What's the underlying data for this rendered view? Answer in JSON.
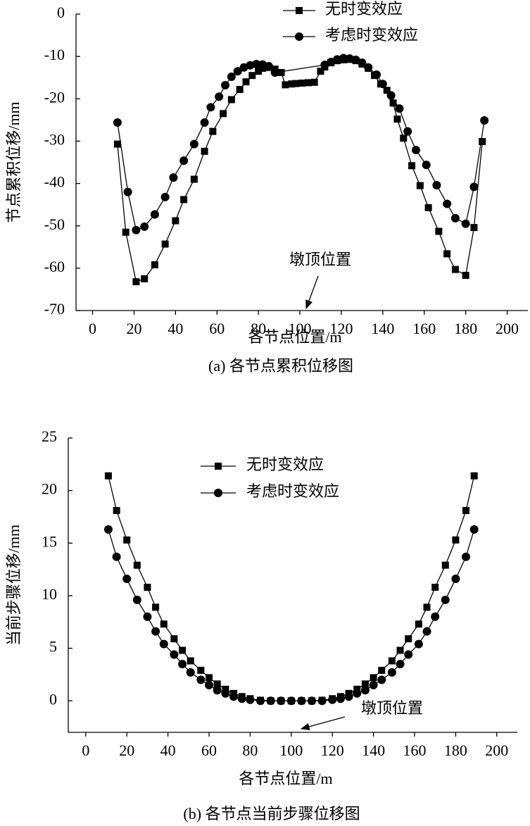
{
  "chart_data": [
    {
      "type": "line",
      "caption": "(a) 各节点累积位移图",
      "xlabel": "各节点位置/m",
      "ylabel": "节点累积位移/mm",
      "annotation": "墩顶位置",
      "xlim": [
        -8,
        210
      ],
      "xticks": [
        0,
        20,
        40,
        60,
        80,
        100,
        120,
        140,
        160,
        180,
        200
      ],
      "ylim": [
        -70,
        0
      ],
      "yticks": [
        -70,
        -60,
        -50,
        -40,
        -30,
        -20,
        -10,
        0
      ],
      "series": [
        {
          "name": "无时变效应",
          "color": "#000000",
          "marker": "square",
          "x": [
            12,
            16,
            21,
            25,
            30,
            35,
            40,
            44,
            49,
            54,
            58,
            63,
            67,
            71,
            74,
            77,
            80,
            82,
            85,
            88,
            91,
            93,
            96,
            98,
            101,
            104,
            107,
            110,
            112,
            115,
            118,
            121,
            124,
            127,
            130,
            133,
            136,
            139,
            142,
            145,
            147,
            150,
            154,
            158,
            162,
            167,
            171,
            175,
            180,
            184,
            188
          ],
          "values": [
            -30.7,
            -51.5,
            -63.2,
            -62.5,
            -59.2,
            -54.3,
            -48.8,
            -43.8,
            -39,
            -32.4,
            -27.7,
            -23.5,
            -20.2,
            -17.8,
            -16,
            -14.5,
            -13.5,
            -12.8,
            -12.6,
            -13,
            -13.8,
            -16.7,
            -16.5,
            -16.4,
            -16.3,
            -16.2,
            -16.1,
            -13.5,
            -12.5,
            -11.5,
            -11,
            -10.8,
            -10.7,
            -11,
            -11.8,
            -12.8,
            -14.5,
            -16.5,
            -18,
            -21,
            -24.8,
            -29.3,
            -35.8,
            -40.5,
            -45.7,
            -51.3,
            -56.6,
            -60.3,
            -61.7,
            -50.4,
            -30.1
          ]
        },
        {
          "name": "考虑时变效应",
          "color": "#000000",
          "marker": "circle",
          "x": [
            12,
            17,
            21,
            25,
            30,
            35,
            39,
            44,
            49,
            54,
            57,
            61,
            64,
            67,
            70,
            73,
            76,
            79,
            82,
            85,
            88,
            112,
            115,
            118,
            121,
            124,
            127,
            130,
            133,
            137,
            140,
            144,
            148,
            152,
            156,
            161,
            166,
            171,
            175,
            180,
            184,
            189
          ],
          "values": [
            -25.6,
            -42,
            -51,
            -50.2,
            -47.3,
            -43.2,
            -38.6,
            -34.6,
            -30.7,
            -25.6,
            -22,
            -19.5,
            -16.8,
            -14.8,
            -13.5,
            -12.6,
            -12.1,
            -11.8,
            -11.9,
            -12.3,
            -13.8,
            -12,
            -11.3,
            -10.7,
            -10.4,
            -10.5,
            -10.8,
            -11.5,
            -12.6,
            -14.3,
            -16.5,
            -19.2,
            -22.3,
            -27.7,
            -32.1,
            -35.6,
            -40.4,
            -44.8,
            -48.2,
            -49.5,
            -40.8,
            -25.1
          ]
        }
      ]
    },
    {
      "type": "line",
      "caption": "(b) 各节点当前步骤位移图",
      "xlabel": "各节点位置/m",
      "ylabel": "当前步骤位移/mm",
      "annotation": "墩顶位置",
      "xlim": [
        -8.5,
        210
      ],
      "xticks": [
        0,
        20,
        40,
        60,
        80,
        100,
        120,
        140,
        160,
        180,
        200
      ],
      "ylim": [
        -3,
        25
      ],
      "yticks": [
        0,
        5,
        10,
        15,
        20,
        25
      ],
      "series": [
        {
          "name": "无时变效应",
          "color": "#000000",
          "marker": "square",
          "x": [
            11,
            15,
            20,
            25,
            30,
            34,
            38,
            43,
            47,
            51,
            56,
            60,
            64,
            68,
            72,
            76,
            80,
            85,
            90,
            95,
            100,
            105,
            110,
            115,
            120,
            124,
            128,
            132,
            136,
            140,
            144,
            149,
            153,
            157,
            162,
            166,
            170,
            175,
            180,
            185,
            189
          ],
          "values": [
            21.4,
            18.1,
            15.3,
            12.9,
            10.8,
            8.9,
            7.3,
            5.9,
            4.8,
            3.8,
            2.9,
            2.2,
            1.6,
            1.1,
            0.7,
            0.4,
            0.2,
            0.05,
            0,
            0,
            0,
            0,
            0,
            0.05,
            0.2,
            0.4,
            0.7,
            1.1,
            1.6,
            2.2,
            2.9,
            3.8,
            4.8,
            5.9,
            7.3,
            8.9,
            10.8,
            12.9,
            15.3,
            18.1,
            21.4
          ]
        },
        {
          "name": "考虑时变效应",
          "color": "#000000",
          "marker": "circle",
          "x": [
            11,
            15,
            20,
            25,
            30,
            34,
            38,
            43,
            47,
            51,
            56,
            60,
            64,
            68,
            72,
            76,
            80,
            85,
            90,
            95,
            100,
            105,
            110,
            115,
            120,
            124,
            128,
            132,
            136,
            140,
            144,
            149,
            153,
            157,
            162,
            166,
            170,
            175,
            180,
            185,
            189
          ],
          "values": [
            16.3,
            13.7,
            11.6,
            9.6,
            8,
            6.6,
            5.4,
            4.4,
            3.5,
            2.7,
            2,
            1.5,
            1,
            0.7,
            0.4,
            0.2,
            0.1,
            0,
            0,
            0,
            0,
            0,
            0,
            0,
            0.1,
            0.2,
            0.4,
            0.7,
            1,
            1.5,
            2,
            2.7,
            3.5,
            4.4,
            5.4,
            6.6,
            8,
            9.6,
            11.6,
            13.7,
            16.3
          ]
        }
      ]
    }
  ]
}
